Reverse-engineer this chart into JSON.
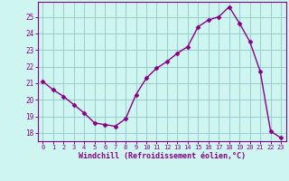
{
  "x": [
    0,
    1,
    2,
    3,
    4,
    5,
    6,
    7,
    8,
    9,
    10,
    11,
    12,
    13,
    14,
    15,
    16,
    17,
    18,
    19,
    20,
    21,
    22,
    23
  ],
  "y": [
    21.1,
    20.6,
    20.2,
    19.7,
    19.2,
    18.6,
    18.5,
    18.4,
    18.85,
    20.3,
    21.3,
    21.9,
    22.3,
    22.8,
    23.2,
    24.4,
    24.8,
    25.0,
    25.6,
    24.6,
    23.5,
    21.7,
    18.1,
    17.7
  ],
  "line_color": "#880088",
  "marker": "D",
  "marker_size": 2.5,
  "background_color": "#cef5f0",
  "grid_color": "#99cccc",
  "xlabel": "Windchill (Refroidissement éolien,°C)",
  "xlabel_color": "#880088",
  "ylabel_ticks": [
    18,
    19,
    20,
    21,
    22,
    23,
    24,
    25
  ],
  "xtick_labels": [
    "0",
    "1",
    "2",
    "3",
    "4",
    "5",
    "6",
    "7",
    "8",
    "9",
    "10",
    "11",
    "12",
    "13",
    "14",
    "15",
    "16",
    "17",
    "18",
    "19",
    "20",
    "21",
    "22",
    "23"
  ],
  "ylim": [
    17.5,
    25.9
  ],
  "xlim": [
    -0.5,
    23.5
  ],
  "tick_color": "#880088",
  "spine_color": "#880088"
}
